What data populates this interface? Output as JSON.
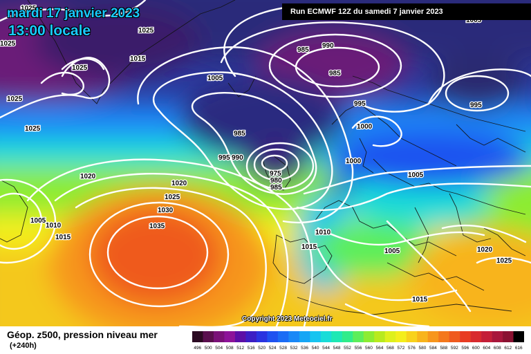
{
  "header": {
    "date": "mardi 17 janvier 2023",
    "time": "13:00 locale",
    "run": "Run ECMWF 12Z du samedi 7 janvier 2023"
  },
  "footer": {
    "title": "Géop. z500, pression niveau mer",
    "subtitle": "(+240h)",
    "copyright": "Copyright 2023 Meteociel.fr"
  },
  "legend": {
    "values": [
      "496",
      "500",
      "504",
      "508",
      "512",
      "516",
      "520",
      "524",
      "528",
      "532",
      "536",
      "540",
      "544",
      "548",
      "552",
      "556",
      "560",
      "564",
      "568",
      "572",
      "576",
      "580",
      "584",
      "588",
      "592",
      "596",
      "600",
      "604",
      "608",
      "612",
      "616"
    ],
    "colors": [
      "#2b0a22",
      "#5a0f4e",
      "#7a1178",
      "#8d1399",
      "#5c0fa6",
      "#3c1fc4",
      "#2a34e0",
      "#1f52f0",
      "#1b6cf5",
      "#1a88f7",
      "#16a6f5",
      "#17c4f0",
      "#19dcd8",
      "#1ee8b4",
      "#30ec8a",
      "#5cee5a",
      "#8cec32",
      "#b8ea1e",
      "#def01c",
      "#f4ee1c",
      "#f8d21c",
      "#f8b41c",
      "#f7961c",
      "#f4781c",
      "#ef5a1e",
      "#e83c22",
      "#d82a2e",
      "#c41f38",
      "#a8173c",
      "#8a1232",
      "#000000"
    ]
  },
  "map_labels": [
    {
      "text": "1025"
    },
    {
      "text": "1025"
    },
    {
      "text": "1025"
    },
    {
      "text": "1015"
    },
    {
      "text": "1025"
    },
    {
      "text": "1025"
    },
    {
      "text": "1025"
    },
    {
      "text": "985"
    },
    {
      "text": "990"
    },
    {
      "text": "985"
    },
    {
      "text": "1005"
    },
    {
      "text": "995"
    },
    {
      "text": "995"
    },
    {
      "text": "1000"
    },
    {
      "text": "985"
    },
    {
      "text": "995"
    },
    {
      "text": "990"
    },
    {
      "text": "975"
    },
    {
      "text": "980"
    },
    {
      "text": "985"
    },
    {
      "text": "1000"
    },
    {
      "text": "1005"
    },
    {
      "text": "1020"
    },
    {
      "text": "1020"
    },
    {
      "text": "1025"
    },
    {
      "text": "1030"
    },
    {
      "text": "1035"
    },
    {
      "text": "1005"
    },
    {
      "text": "1010"
    },
    {
      "text": "1015"
    },
    {
      "text": "1010"
    },
    {
      "text": "1015"
    },
    {
      "text": "1005"
    },
    {
      "text": "1020"
    },
    {
      "text": "1025"
    },
    {
      "text": "1015"
    },
    {
      "text": "1005"
    }
  ]
}
